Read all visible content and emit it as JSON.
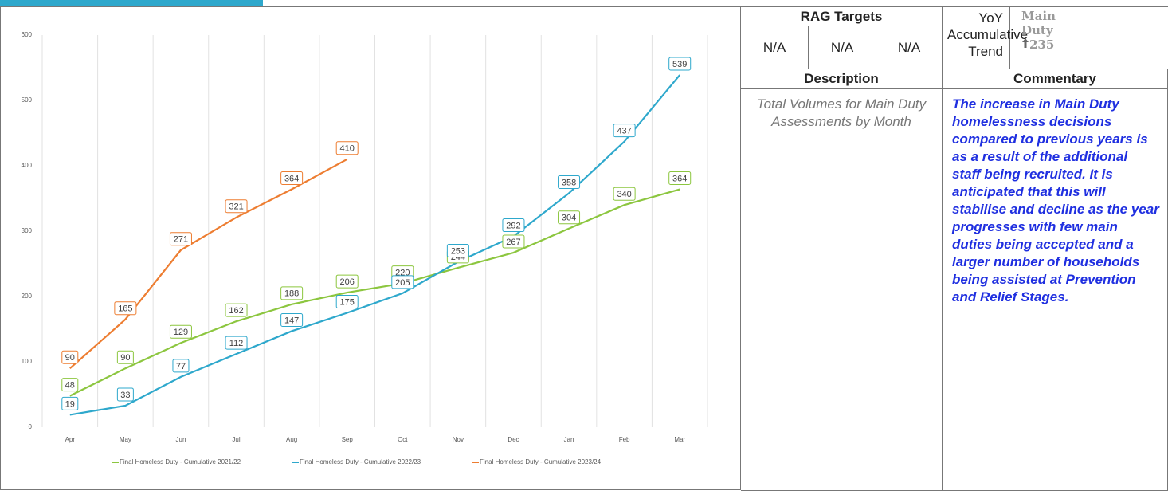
{
  "chart_data": {
    "type": "line",
    "categories": [
      "Apr",
      "May",
      "Jun",
      "Jul",
      "Aug",
      "Sep",
      "Oct",
      "Nov",
      "Dec",
      "Jan",
      "Feb",
      "Mar"
    ],
    "series": [
      {
        "name": "Final Homeless Duty - Cumulative 2021/22",
        "color": "#8cc63f",
        "values": [
          48,
          90,
          129,
          162,
          188,
          206,
          220,
          244,
          267,
          304,
          340,
          364
        ]
      },
      {
        "name": "Final Homeless Duty - Cumulative 2022/23",
        "color": "#2ea8cc",
        "values": [
          19,
          33,
          77,
          112,
          147,
          175,
          205,
          253,
          292,
          358,
          437,
          539
        ]
      },
      {
        "name": "Final Homeless Duty - Cumulative 2023/24",
        "color": "#ed7d31",
        "values": [
          90,
          165,
          271,
          321,
          364,
          410,
          null,
          null,
          null,
          null,
          null,
          null
        ]
      }
    ],
    "ylim": [
      0,
      600
    ],
    "yticks": [
      0,
      100,
      200,
      300,
      400,
      500,
      600
    ],
    "grid": false,
    "category_grid": true,
    "data_labels": true,
    "legend": "bottom"
  },
  "panel": {
    "rag_targets": {
      "title": "RAG Targets",
      "values": [
        "N/A",
        "N/A",
        "N/A"
      ]
    },
    "trend": {
      "label": "YoY Accumulative Trend",
      "measure": "Main Duty",
      "value": 235
    },
    "description": {
      "title": "Description",
      "text": "Total Volumes for Main Duty Assessments by Month"
    },
    "commentary": {
      "title": "Commentary",
      "text": "The increase in Main Duty homelessness decisions compared to previous years is as a result of the additional staff being recruited. It is anticipated that this will stabilise and decline as the year progresses with few main duties being accepted and a larger number of households being assisted at Prevention and Relief Stages."
    }
  }
}
